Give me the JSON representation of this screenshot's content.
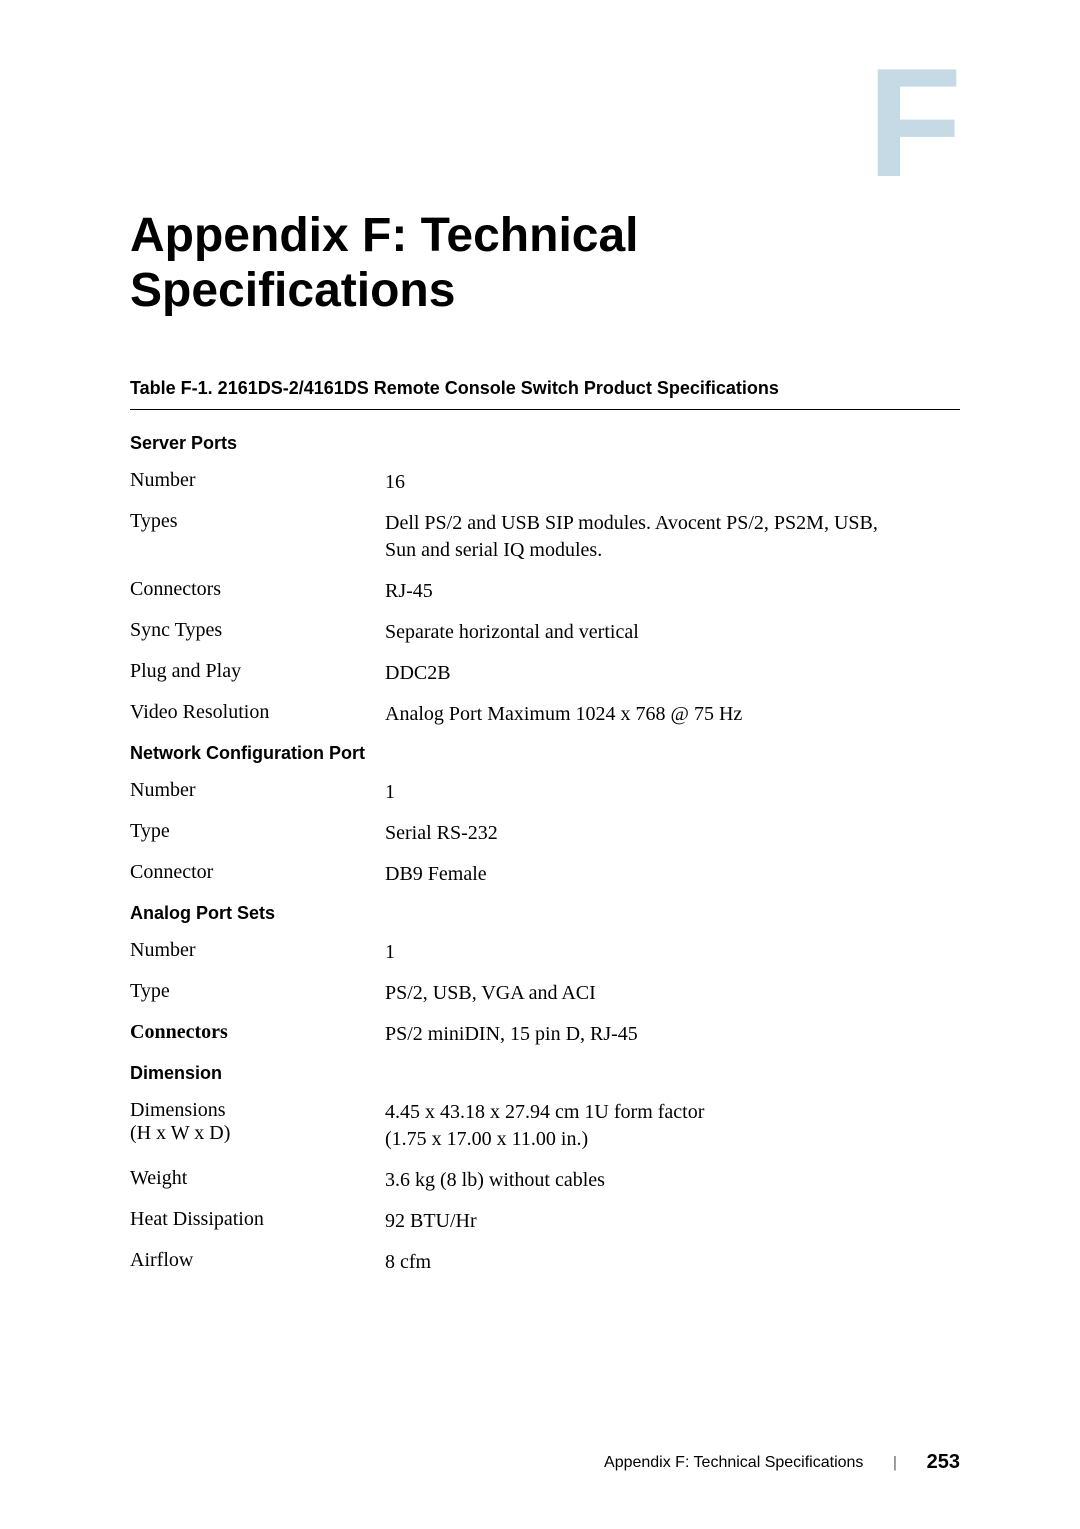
{
  "cornerLetter": "F",
  "mainTitle": "Appendix F: Technical Specifications",
  "tableTitle": "Table F-1.    2161DS-2/4161DS Remote Console Switch Product Specifications",
  "sections": {
    "serverPorts": {
      "header": "Server Ports",
      "rows": {
        "number": {
          "label": "Number",
          "value": "16"
        },
        "types": {
          "label": "Types",
          "value": "Dell PS/2 and USB SIP modules. Avocent PS/2, PS2M, USB,\nSun and serial IQ modules."
        },
        "connectors": {
          "label": "Connectors",
          "value": "RJ-45"
        },
        "syncTypes": {
          "label": "Sync Types",
          "value": "Separate horizontal and vertical"
        },
        "plugAndPlay": {
          "label": "Plug and Play",
          "value": "DDC2B"
        },
        "videoResolution": {
          "label": "Video Resolution",
          "value": "Analog Port Maximum 1024 x 768 @ 75 Hz"
        }
      }
    },
    "networkConfig": {
      "header": "Network Configuration Port",
      "rows": {
        "number": {
          "label": "Number",
          "value": "1"
        },
        "type": {
          "label": "Type",
          "value": "Serial RS-232"
        },
        "connector": {
          "label": "Connector",
          "value": "DB9 Female"
        }
      }
    },
    "analogPort": {
      "header": "Analog Port Sets",
      "rows": {
        "number": {
          "label": "Number",
          "value": "1"
        },
        "type": {
          "label": "Type",
          "value": "PS/2, USB, VGA and ACI"
        },
        "connectors": {
          "label": "Connectors",
          "value": "PS/2 miniDIN, 15 pin D, RJ-45"
        }
      }
    },
    "dimension": {
      "header": "Dimension",
      "rows": {
        "dimensions": {
          "label": "Dimensions\n(H x W x D)",
          "value": "4.45 x 43.18 x 27.94 cm 1U form factor\n(1.75 x 17.00 x 11.00 in.)"
        },
        "weight": {
          "label": "Weight",
          "value": "3.6 kg (8 lb) without cables"
        },
        "heatDissipation": {
          "label": "Heat Dissipation",
          "value": "92 BTU/Hr"
        },
        "airflow": {
          "label": "Airflow",
          "value": "8 cfm"
        }
      }
    }
  },
  "footer": {
    "text": "Appendix F: Technical Specifications",
    "page": "253"
  }
}
